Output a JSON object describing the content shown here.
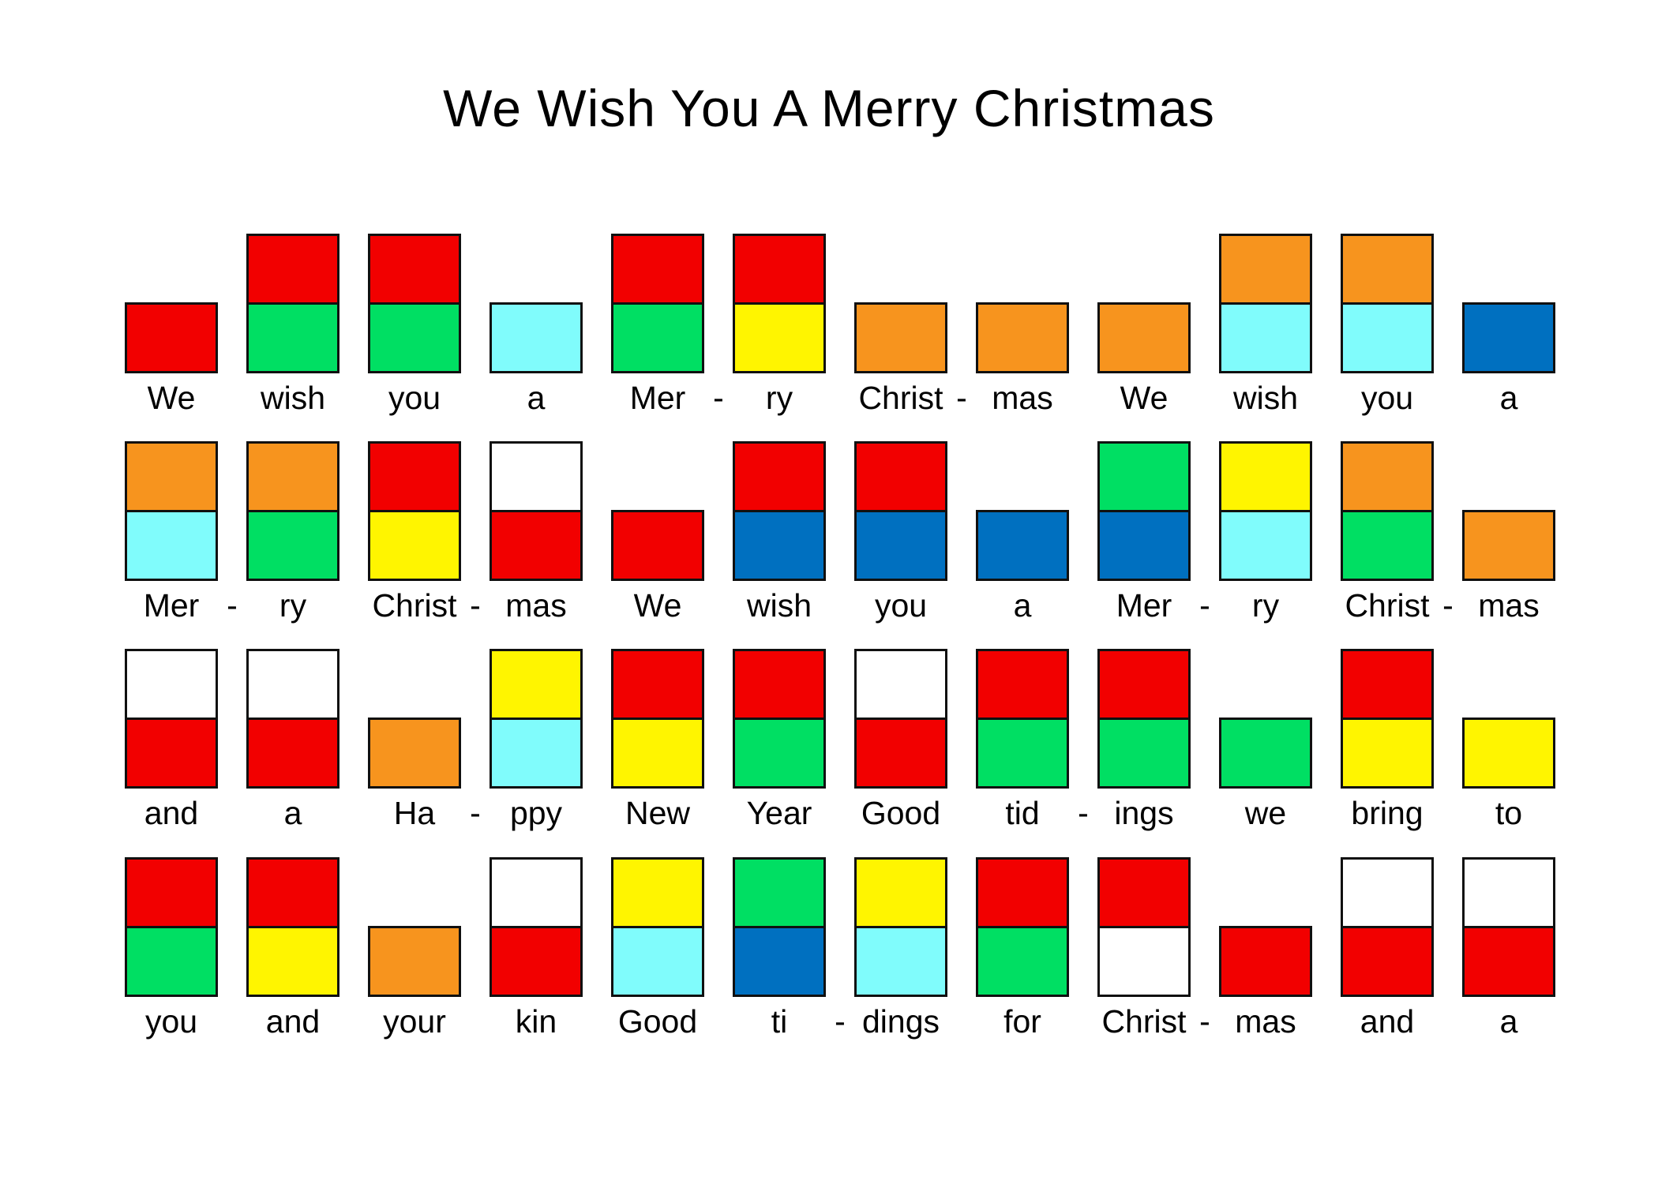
{
  "title": "We Wish You A Merry Christmas",
  "dash_glyph": "-",
  "palette": {
    "red": "#F20000",
    "orange": "#F7941E",
    "yellow": "#FFF500",
    "green": "#00DF63",
    "cyan": "#80FCFC",
    "blue": "#0070C0",
    "white": "#FFFFFF"
  },
  "rows": [
    {
      "cells": [
        {
          "word": "We",
          "top": null,
          "bottom": "red"
        },
        {
          "word": "wish",
          "top": "red",
          "bottom": "green"
        },
        {
          "word": "you",
          "top": "red",
          "bottom": "green"
        },
        {
          "word": "a",
          "top": null,
          "bottom": "cyan"
        },
        {
          "word": "Mer",
          "top": "red",
          "bottom": "green",
          "dash_after": true
        },
        {
          "word": "ry",
          "top": "red",
          "bottom": "yellow"
        },
        {
          "word": "Christ",
          "top": null,
          "bottom": "orange",
          "dash_after": true
        },
        {
          "word": "mas",
          "top": null,
          "bottom": "orange"
        },
        {
          "word": "We",
          "top": null,
          "bottom": "orange"
        },
        {
          "word": "wish",
          "top": "orange",
          "bottom": "cyan"
        },
        {
          "word": "you",
          "top": "orange",
          "bottom": "cyan"
        },
        {
          "word": "a",
          "top": null,
          "bottom": "blue"
        }
      ]
    },
    {
      "cells": [
        {
          "word": "Mer",
          "top": "orange",
          "bottom": "cyan",
          "dash_after": true
        },
        {
          "word": "ry",
          "top": "orange",
          "bottom": "green"
        },
        {
          "word": "Christ",
          "top": "red",
          "bottom": "yellow",
          "dash_after": true
        },
        {
          "word": "mas",
          "top": "white",
          "bottom": "red"
        },
        {
          "word": "We",
          "top": null,
          "bottom": "red"
        },
        {
          "word": "wish",
          "top": "red",
          "bottom": "blue"
        },
        {
          "word": "you",
          "top": "red",
          "bottom": "blue"
        },
        {
          "word": "a",
          "top": null,
          "bottom": "blue"
        },
        {
          "word": "Mer",
          "top": "green",
          "bottom": "blue",
          "dash_after": true
        },
        {
          "word": "ry",
          "top": "yellow",
          "bottom": "cyan"
        },
        {
          "word": "Christ",
          "top": "orange",
          "bottom": "green",
          "dash_after": true
        },
        {
          "word": "mas",
          "top": null,
          "bottom": "orange"
        }
      ]
    },
    {
      "cells": [
        {
          "word": "and",
          "top": "white",
          "bottom": "red"
        },
        {
          "word": "a",
          "top": "white",
          "bottom": "red"
        },
        {
          "word": "Ha",
          "top": null,
          "bottom": "orange",
          "dash_after": true
        },
        {
          "word": "ppy",
          "top": "yellow",
          "bottom": "cyan"
        },
        {
          "word": "New",
          "top": "red",
          "bottom": "yellow"
        },
        {
          "word": "Year",
          "top": "red",
          "bottom": "green"
        },
        {
          "word": "Good",
          "top": "white",
          "bottom": "red"
        },
        {
          "word": "tid",
          "top": "red",
          "bottom": "green",
          "dash_after": true
        },
        {
          "word": "ings",
          "top": "red",
          "bottom": "green"
        },
        {
          "word": "we",
          "top": null,
          "bottom": "green"
        },
        {
          "word": "bring",
          "top": "red",
          "bottom": "yellow"
        },
        {
          "word": "to",
          "top": null,
          "bottom": "yellow"
        }
      ]
    },
    {
      "cells": [
        {
          "word": "you",
          "top": "red",
          "bottom": "green"
        },
        {
          "word": "and",
          "top": "red",
          "bottom": "yellow"
        },
        {
          "word": "your",
          "top": null,
          "bottom": "orange"
        },
        {
          "word": "kin",
          "top": "white",
          "bottom": "red"
        },
        {
          "word": "Good",
          "top": "yellow",
          "bottom": "cyan"
        },
        {
          "word": "ti",
          "top": "green",
          "bottom": "blue",
          "dash_after": true
        },
        {
          "word": "dings",
          "top": "yellow",
          "bottom": "cyan"
        },
        {
          "word": "for",
          "top": "red",
          "bottom": "green"
        },
        {
          "word": "Christ",
          "top": "red",
          "bottom": "white",
          "dash_after": true
        },
        {
          "word": "mas",
          "top": null,
          "bottom": "red"
        },
        {
          "word": "and",
          "top": "white",
          "bottom": "red"
        },
        {
          "word": "a",
          "top": "white",
          "bottom": "red"
        }
      ]
    }
  ]
}
